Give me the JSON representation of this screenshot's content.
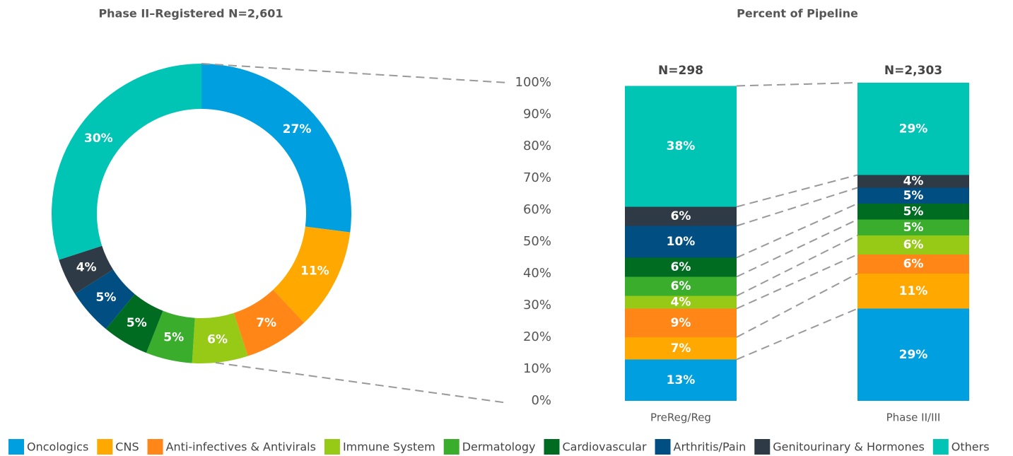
{
  "chart_data": [
    {
      "type": "donut",
      "title": "Phase II–Registered N=2,601",
      "values": [
        27,
        11,
        7,
        6,
        5,
        5,
        5,
        4,
        30
      ],
      "value_labels": [
        "27%",
        "11%",
        "7%",
        "6%",
        "5%",
        "5%",
        "5%",
        "4%",
        "30%"
      ],
      "colors": [
        "#00a0e0",
        "#ffa800",
        "#ff8617",
        "#97c917",
        "#3aad2c",
        "#006c22",
        "#004e82",
        "#2e3a46",
        "#00c5b5"
      ]
    },
    {
      "type": "stacked_bar",
      "title": "Percent of Pipeline",
      "categories": [
        "PreReg/Reg",
        "Phase II/III"
      ],
      "annotations": [
        "N=298",
        "N=2,303"
      ],
      "ylim": [
        0,
        100
      ],
      "yticks": [
        {
          "value": 0,
          "label": "0%"
        },
        {
          "value": 10,
          "label": "10%"
        },
        {
          "value": 20,
          "label": "20%"
        },
        {
          "value": 30,
          "label": "30%"
        },
        {
          "value": 40,
          "label": "40%"
        },
        {
          "value": 50,
          "label": "50%"
        },
        {
          "value": 60,
          "label": "60%"
        },
        {
          "value": 70,
          "label": "70%"
        },
        {
          "value": 80,
          "label": "80%"
        },
        {
          "value": 90,
          "label": "90%"
        },
        {
          "value": 100,
          "label": "100%"
        }
      ],
      "series": [
        {
          "name": "Oncologics",
          "color": "#00a0e0",
          "values": [
            13,
            29
          ],
          "value_labels": [
            "13%",
            "29%"
          ]
        },
        {
          "name": "CNS",
          "color": "#ffa800",
          "values": [
            7,
            11
          ],
          "value_labels": [
            "7%",
            "11%"
          ]
        },
        {
          "name": "Anti-infectives & Antivirals",
          "color": "#ff8617",
          "values": [
            9,
            6
          ],
          "value_labels": [
            "9%",
            "6%"
          ]
        },
        {
          "name": "Immune System",
          "color": "#97c917",
          "values": [
            4,
            6
          ],
          "value_labels": [
            "4%",
            "6%"
          ]
        },
        {
          "name": "Dermatology",
          "color": "#3aad2c",
          "values": [
            6,
            5
          ],
          "value_labels": [
            "6%",
            "5%"
          ]
        },
        {
          "name": "Cardiovascular",
          "color": "#006c22",
          "values": [
            6,
            5
          ],
          "value_labels": [
            "6%",
            "5%"
          ]
        },
        {
          "name": "Arthritis/Pain",
          "color": "#004e82",
          "values": [
            10,
            5
          ],
          "value_labels": [
            "10%",
            "5%"
          ]
        },
        {
          "name": "Genitourinary & Hormones",
          "color": "#2e3a46",
          "values": [
            6,
            4
          ],
          "value_labels": [
            "6%",
            "4%"
          ]
        },
        {
          "name": "Others",
          "color": "#00c5b5",
          "values": [
            38,
            29
          ],
          "value_labels": [
            "38%",
            "29%"
          ]
        }
      ]
    }
  ]
}
